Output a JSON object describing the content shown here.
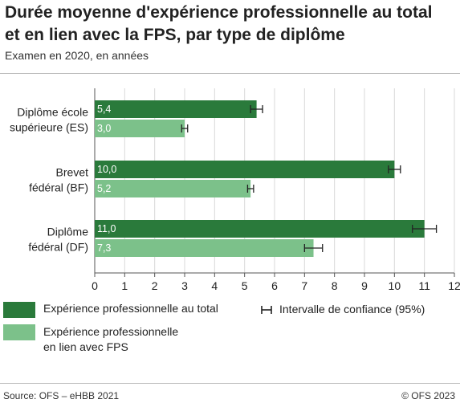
{
  "title_line1": "Durée moyenne d'expérience professionnelle au total",
  "title_line2": "et en lien avec la FPS, par type de diplôme",
  "subtitle": "Examen en 2020, en années",
  "legend": {
    "series1": "Expérience professionnelle au total",
    "series2_line1": "Expérience professionnelle",
    "series2_line2": "en lien avec FPS",
    "ci": "Intervalle de confiance (95%)"
  },
  "footer": {
    "source": "Source: OFS – eHBB 2021",
    "copyright": "© OFS 2023"
  },
  "colors": {
    "dark_green": "#2a7a3b",
    "light_green": "#7cc18a",
    "grid": "#d9d9d9",
    "axis": "#555555"
  },
  "chart_data": {
    "type": "bar",
    "orientation": "horizontal",
    "categories": [
      [
        "Diplôme école",
        "supérieure (ES)"
      ],
      [
        "Brevet",
        "fédéral (BF)"
      ],
      [
        "Diplôme",
        "fédéral (DF)"
      ]
    ],
    "series": [
      {
        "name": "Expérience professionnelle au total",
        "color": "#2a7a3b",
        "values": [
          5.4,
          10.0,
          11.0
        ],
        "labels": [
          "5,4",
          "10,0",
          "11,0"
        ],
        "ci": [
          [
            5.2,
            5.6
          ],
          [
            9.8,
            10.2
          ],
          [
            10.6,
            11.4
          ]
        ]
      },
      {
        "name": "Expérience professionnelle en lien avec FPS",
        "color": "#7cc18a",
        "values": [
          3.0,
          5.2,
          7.3
        ],
        "labels": [
          "3,0",
          "5,2",
          "7,3"
        ],
        "ci": [
          [
            2.9,
            3.1
          ],
          [
            5.1,
            5.3
          ],
          [
            7.0,
            7.6
          ]
        ]
      }
    ],
    "xlim": [
      0,
      12
    ],
    "xticks": [
      "0",
      "1",
      "2",
      "3",
      "4",
      "5",
      "6",
      "7",
      "8",
      "9",
      "10",
      "11",
      "12"
    ],
    "grid": true,
    "legend_position": "bottom"
  }
}
